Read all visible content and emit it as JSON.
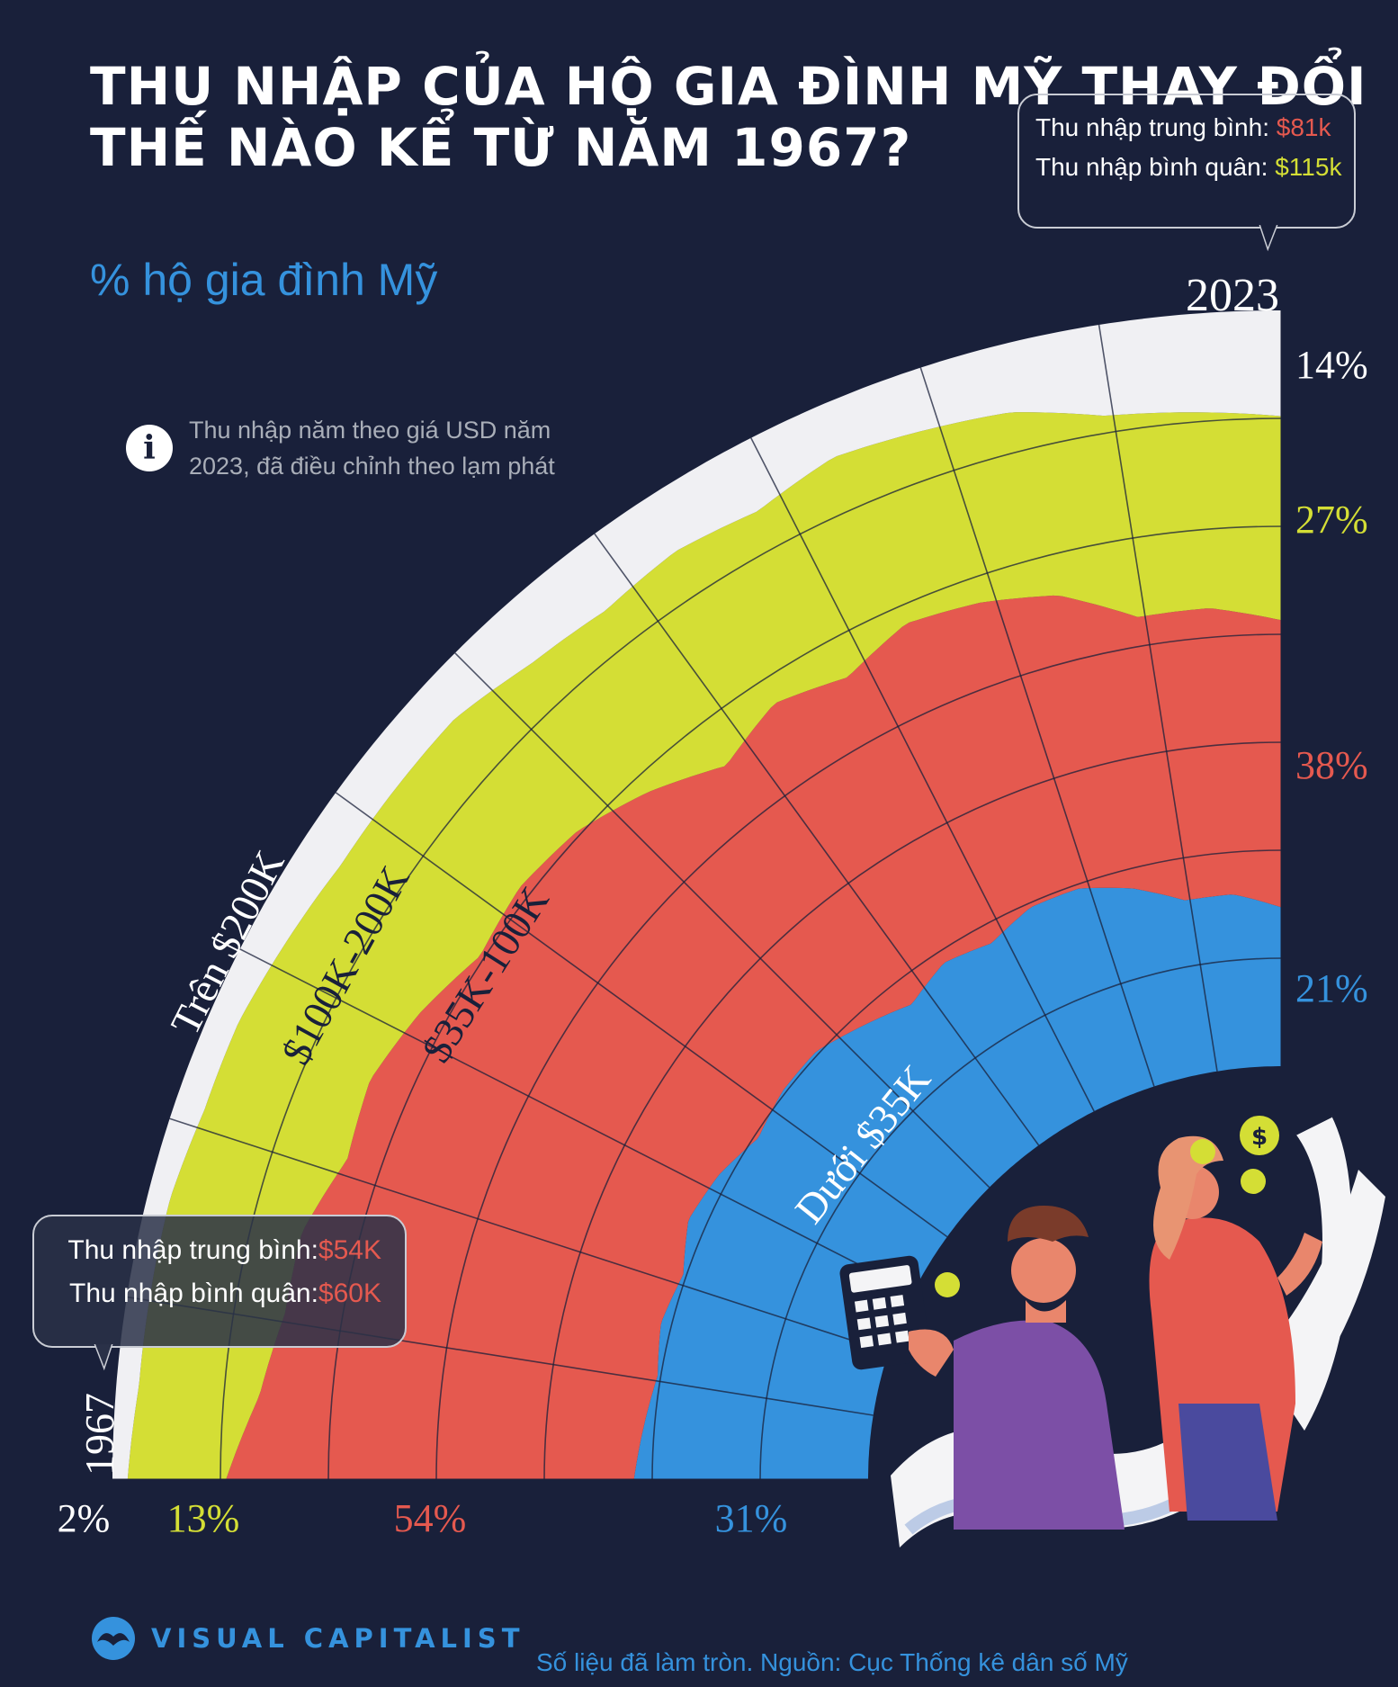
{
  "title": "THU NHẬP CỦA HỘ GIA ĐÌNH MỸ THAY ĐỔI THẾ NÀO KỂ TỪ NĂM 1967?",
  "subtitle": "% hộ gia đình Mỹ",
  "note": "Thu nhập năm theo giá USD năm 2023, đã điều chỉnh theo lạm phát",
  "note_icon": "info-icon",
  "callout_2023": {
    "median_label": "Thu nhập trung bình:",
    "median_value": "$81k",
    "mean_label": "Thu nhập bình quân:",
    "mean_value": "$115k"
  },
  "callout_1967": {
    "median_label": "Thu nhập trung bình:",
    "median_value": "$54K",
    "mean_label": "Thu nhập bình quân:",
    "mean_value": "$60K"
  },
  "footer": {
    "brand": "VISUAL CAPITALIST",
    "source": "Số liệu đã làm tròn. Nguồn: Cục Thống kê dân số Mỹ"
  },
  "colors": {
    "background": "#19203a",
    "over_200k": "#f0f0f3",
    "k100_200": "#d4de35",
    "k35_100": "#e5594f",
    "under_35k": "#3592dd"
  },
  "chart_data": {
    "type": "area",
    "title": "THU NHẬP CỦA HỘ GIA ĐÌNH MỸ THAY ĐỔI THẾ NÀO KỂ TỪ NĂM 1967?",
    "ylabel": "% hộ gia đình Mỹ",
    "start_label": "1967",
    "end_label": "2023",
    "x": [
      1967,
      1970,
      1973,
      1976,
      1979,
      1982,
      1985,
      1988,
      1991,
      1994,
      1997,
      2000,
      2003,
      2006,
      2009,
      2012,
      2015,
      2018,
      2021,
      2023
    ],
    "series": [
      {
        "name": "Dưới $35K",
        "label_1967": "31%",
        "label_2023": "21%",
        "values": [
          31,
          30,
          29,
          30,
          29,
          31,
          30,
          28,
          29,
          29,
          27,
          25,
          27,
          26,
          28,
          28,
          26,
          23,
          23,
          21
        ]
      },
      {
        "name": "$35K-100K",
        "label_1967": "54%",
        "label_2023": "38%",
        "values": [
          54,
          51,
          50,
          49,
          47,
          46,
          45,
          44,
          44,
          43,
          42,
          40,
          41,
          40,
          41,
          40,
          40,
          38,
          38,
          38
        ]
      },
      {
        "name": "$100K-200K",
        "label_1967": "13%",
        "label_2023": "27%",
        "values": [
          13,
          16,
          18,
          18,
          20,
          19,
          20,
          22,
          21,
          22,
          23,
          26,
          24,
          25,
          24,
          24,
          25,
          27,
          26,
          27
        ]
      },
      {
        "name": "Trên $200K",
        "label_1967": "2%",
        "label_2023": "14%",
        "values": [
          2,
          3,
          3,
          3,
          4,
          4,
          5,
          6,
          6,
          6,
          8,
          9,
          8,
          9,
          7,
          8,
          9,
          12,
          13,
          14
        ]
      }
    ]
  }
}
